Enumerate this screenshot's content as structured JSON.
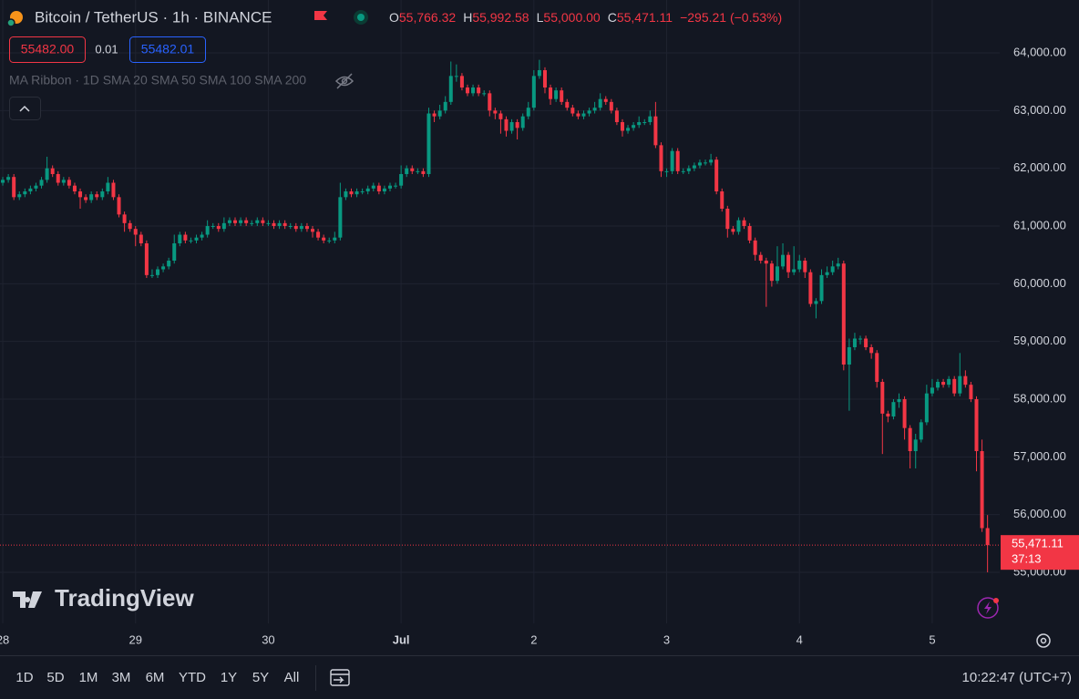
{
  "header": {
    "symbol": "Bitcoin / TetherUS · 1h · BINANCE",
    "ohlc": [
      {
        "label": "O",
        "value": "55,766.32"
      },
      {
        "label": "H",
        "value": "55,992.58"
      },
      {
        "label": "L",
        "value": "55,000.00"
      },
      {
        "label": "C",
        "value": "55,471.11"
      }
    ],
    "change": "−295.21 (−0.53%)",
    "sell": "55482.00",
    "spread": "0.01",
    "buy": "55482.01",
    "indicator": "MA Ribbon · 1D SMA 20 SMA 50 SMA 100 SMA 200"
  },
  "watermark": "TradingView",
  "footer": {
    "ranges": [
      "1D",
      "5D",
      "1M",
      "3M",
      "6M",
      "YTD",
      "1Y",
      "5Y",
      "All"
    ],
    "clock": "10:22:47 (UTC+7)"
  },
  "chart_data": {
    "type": "candlestick",
    "up_color": "#089981",
    "down_color": "#f23645",
    "grid": true,
    "last_price_label": "55,471.11",
    "countdown": "37:13",
    "xlim": [
      -0.5,
      180.2
    ],
    "xticks": [
      {
        "value": 0,
        "label": "28"
      },
      {
        "value": 24,
        "label": "29"
      },
      {
        "value": 48,
        "label": "30"
      },
      {
        "value": 72,
        "label": "Jul"
      },
      {
        "value": 96,
        "label": "2"
      },
      {
        "value": 120,
        "label": "3"
      },
      {
        "value": 144,
        "label": "4"
      },
      {
        "value": 168,
        "label": "5"
      }
    ],
    "ylim": [
      54116,
      64916
    ],
    "yticks": [
      {
        "value": 55000,
        "label": "55,000.00"
      },
      {
        "value": 56000,
        "label": "56,000.00"
      },
      {
        "value": 57000,
        "label": "57,000.00"
      },
      {
        "value": 58000,
        "label": "58,000.00"
      },
      {
        "value": 59000,
        "label": "59,000.00"
      },
      {
        "value": 60000,
        "label": "60,000.00"
      },
      {
        "value": 61000,
        "label": "61,000.00"
      },
      {
        "value": 62000,
        "label": "62,000.00"
      },
      {
        "value": 63000,
        "label": "63,000.00"
      },
      {
        "value": 64000,
        "label": "64,000.00"
      }
    ],
    "open": [
      61750,
      61800,
      61850,
      61500,
      61550,
      61600,
      61650,
      61700,
      61800,
      62000,
      61900,
      61750,
      61800,
      61700,
      61600,
      61500,
      61450,
      61550,
      61500,
      61600,
      61750,
      61500,
      61200,
      61050,
      60950,
      60850,
      60700,
      60150,
      60150,
      60250,
      60300,
      60400,
      60700,
      60850,
      60750,
      60750,
      60800,
      60850,
      61000,
      61000,
      60950,
      61050,
      61100,
      61050,
      61100,
      61050,
      61050,
      61100,
      61050,
      61050,
      61000,
      61050,
      61000,
      61000,
      60950,
      61000,
      60950,
      60900,
      60800,
      60750,
      60750,
      60800,
      61500,
      61600,
      61550,
      61600,
      61600,
      61650,
      61700,
      61600,
      61650,
      61700,
      61700,
      61900,
      62000,
      61950,
      61950,
      61900,
      62950,
      62900,
      63000,
      63150,
      63600,
      63600,
      63400,
      63300,
      63400,
      63300,
      63300,
      63000,
      62950,
      62850,
      62650,
      62800,
      62700,
      62900,
      63050,
      63600,
      63700,
      63400,
      63200,
      63350,
      63150,
      63050,
      62950,
      62900,
      62950,
      63000,
      63050,
      63200,
      63150,
      63000,
      62800,
      62650,
      62700,
      62750,
      62800,
      62800,
      62900,
      62400,
      61950,
      61950,
      62300,
      61950,
      61950,
      62000,
      62050,
      62100,
      62100,
      62150,
      61600,
      61300,
      60950,
      60900,
      61100,
      61000,
      60750,
      60500,
      60400,
      60350,
      60050,
      60300,
      60500,
      60200,
      60250,
      60400,
      60200,
      59650,
      59700,
      60150,
      60200,
      60300,
      60350,
      58600,
      58900,
      59050,
      59050,
      58900,
      58800,
      58300,
      57750,
      57700,
      57950,
      58000,
      57500,
      57100,
      57300,
      57600,
      58100,
      58200,
      58300,
      58250,
      58350,
      58100,
      58400,
      58250,
      58000,
      57100,
      55766.32
    ],
    "high": [
      61850,
      61900,
      61900,
      61600,
      61650,
      61700,
      61750,
      61850,
      62200,
      62050,
      61950,
      61850,
      61850,
      61750,
      61650,
      61550,
      61600,
      61600,
      61650,
      61850,
      61800,
      61550,
      61250,
      61100,
      61000,
      60900,
      60750,
      60250,
      60300,
      60350,
      60450,
      60850,
      60900,
      60900,
      60800,
      60850,
      60900,
      61100,
      61050,
      61050,
      61150,
      61150,
      61150,
      61150,
      61150,
      61100,
      61150,
      61150,
      61100,
      61100,
      61100,
      61100,
      61050,
      61050,
      61050,
      61050,
      61000,
      60950,
      60850,
      60800,
      60900,
      61750,
      61650,
      61650,
      61650,
      61650,
      61700,
      61750,
      61750,
      61700,
      61750,
      61750,
      62050,
      62050,
      62050,
      62000,
      62000,
      63050,
      63000,
      63100,
      63250,
      63850,
      63800,
      63650,
      63450,
      63450,
      63450,
      63350,
      63350,
      63050,
      63000,
      62900,
      62850,
      62850,
      62950,
      63150,
      63700,
      63880,
      63750,
      63450,
      63400,
      63400,
      63200,
      63100,
      63000,
      63000,
      63050,
      63150,
      63300,
      63250,
      63200,
      63050,
      62850,
      62750,
      62800,
      62900,
      62850,
      63000,
      63150,
      62450,
      62000,
      62350,
      62350,
      62000,
      62050,
      62100,
      62150,
      62150,
      62250,
      62200,
      61650,
      61350,
      61000,
      61150,
      61150,
      61050,
      60800,
      60550,
      60450,
      60400,
      60650,
      60700,
      60550,
      60650,
      60500,
      60450,
      60250,
      59750,
      60250,
      60300,
      60400,
      60450,
      60400,
      59050,
      59150,
      59100,
      59100,
      58950,
      58850,
      58350,
      57800,
      58000,
      58100,
      58050,
      57550,
      57400,
      57650,
      58250,
      58350,
      58350,
      58350,
      58400,
      58400,
      58800,
      58500,
      58300,
      58050,
      57300,
      55992.58
    ],
    "low": [
      61700,
      61750,
      61450,
      61450,
      61500,
      61550,
      61600,
      61650,
      61750,
      61850,
      61700,
      61700,
      61650,
      61550,
      61300,
      61400,
      61400,
      61450,
      61450,
      61550,
      61450,
      61150,
      60900,
      60900,
      60650,
      60650,
      60100,
      60100,
      60100,
      60200,
      60250,
      60350,
      60650,
      60700,
      60700,
      60700,
      60750,
      60800,
      60950,
      60900,
      60900,
      61000,
      61000,
      61000,
      61000,
      61000,
      61000,
      61000,
      61000,
      60950,
      60950,
      60950,
      60950,
      60900,
      60900,
      60900,
      60800,
      60750,
      60700,
      60700,
      60700,
      60750,
      61450,
      61500,
      61500,
      61550,
      61550,
      61600,
      61550,
      61550,
      61600,
      61650,
      61650,
      61850,
      61900,
      61900,
      61850,
      61850,
      62800,
      62850,
      62950,
      63100,
      63500,
      63350,
      63250,
      63250,
      63250,
      63250,
      62900,
      62850,
      62600,
      62550,
      62600,
      62500,
      62650,
      62850,
      63000,
      63550,
      63300,
      63100,
      63150,
      63100,
      63000,
      62900,
      62850,
      62850,
      62900,
      62950,
      63000,
      63100,
      62950,
      62750,
      62550,
      62600,
      62650,
      62700,
      62750,
      62750,
      62350,
      61850,
      61850,
      61900,
      61900,
      61900,
      61900,
      61950,
      62000,
      62050,
      62050,
      61550,
      61250,
      60800,
      60850,
      60850,
      60950,
      60700,
      60400,
      60350,
      59600,
      59950,
      60000,
      60250,
      60100,
      60150,
      60200,
      60100,
      59600,
      59400,
      59650,
      60100,
      60150,
      60250,
      58500,
      57800,
      58850,
      58950,
      58850,
      58700,
      58200,
      57050,
      57600,
      57650,
      57850,
      57300,
      56800,
      56800,
      57250,
      57550,
      58050,
      58150,
      58200,
      58200,
      58050,
      58050,
      58200,
      57950,
      56750,
      55700,
      55000
    ],
    "close": [
      61800,
      61850,
      61500,
      61550,
      61600,
      61650,
      61700,
      61800,
      62000,
      61900,
      61750,
      61800,
      61700,
      61600,
      61500,
      61450,
      61550,
      61500,
      61600,
      61750,
      61500,
      61200,
      61050,
      60950,
      60850,
      60700,
      60150,
      60150,
      60250,
      60300,
      60400,
      60700,
      60850,
      60750,
      60750,
      60800,
      60850,
      61000,
      61000,
      60950,
      61050,
      61100,
      61050,
      61100,
      61050,
      61050,
      61100,
      61050,
      61050,
      61000,
      61050,
      61000,
      61000,
      60950,
      61000,
      60950,
      60900,
      60800,
      60750,
      60750,
      60800,
      61500,
      61600,
      61550,
      61600,
      61600,
      61650,
      61700,
      61600,
      61650,
      61700,
      61700,
      61900,
      62000,
      61950,
      61950,
      61900,
      62950,
      62900,
      63000,
      63150,
      63600,
      63600,
      63400,
      63300,
      63400,
      63300,
      63300,
      63000,
      62950,
      62850,
      62650,
      62800,
      62700,
      62900,
      63050,
      63600,
      63700,
      63400,
      63200,
      63350,
      63150,
      63050,
      62950,
      62900,
      62950,
      63000,
      63050,
      63200,
      63150,
      63000,
      62800,
      62650,
      62700,
      62750,
      62800,
      62800,
      62900,
      62400,
      61950,
      61950,
      62300,
      61950,
      61950,
      62000,
      62050,
      62100,
      62100,
      62150,
      61600,
      61300,
      60950,
      60900,
      61100,
      61000,
      60750,
      60500,
      60400,
      60350,
      60050,
      60300,
      60500,
      60200,
      60250,
      60400,
      60200,
      59650,
      59700,
      60150,
      60200,
      60300,
      60350,
      58600,
      58900,
      59050,
      59050,
      58900,
      58800,
      58300,
      57750,
      57700,
      57950,
      58000,
      57500,
      57100,
      57300,
      57600,
      58100,
      58200,
      58300,
      58250,
      58350,
      58100,
      58400,
      58250,
      58000,
      57100,
      55766.32,
      55471.11
    ]
  }
}
